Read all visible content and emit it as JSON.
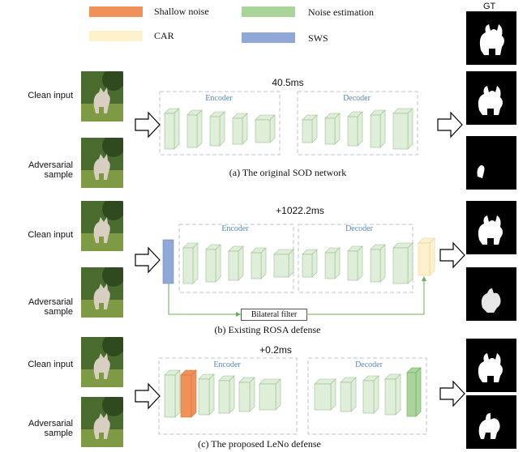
{
  "legend": {
    "shallow_noise": {
      "label": "Shallow noise",
      "color": "#f0915a"
    },
    "noise_estimation": {
      "label": "Noise estimation",
      "color": "#a9d59a"
    },
    "car": {
      "label": "CAR",
      "color": "#fdf1cc"
    },
    "sws": {
      "label": "SWS",
      "color": "#90a8d8"
    }
  },
  "gt_label": "GT",
  "panels": [
    {
      "clean_label": "Clean input",
      "adv_label": "Adversarial sample",
      "timing": "40.5ms",
      "encoder_label": "Encoder",
      "decoder_label": "Decoder",
      "caption": "(a) The original SOD network"
    },
    {
      "clean_label": "Clean input",
      "adv_label": "Adversarial sample",
      "timing": "+1022.2ms",
      "encoder_label": "Encoder",
      "decoder_label": "Decoder",
      "filter_label": "Bilateral filter",
      "caption": "(b) Existing ROSA defense"
    },
    {
      "clean_label": "Clean input",
      "adv_label": "Adversarial sample",
      "timing": "+0.2ms",
      "encoder_label": "Encoder",
      "decoder_label": "Decoder",
      "caption": "(c) The proposed LeNo defense"
    }
  ],
  "colors": {
    "block_green": "#dfeed8",
    "block_green_edge": "#9cbf90",
    "dashed_box": "#b9c6cf",
    "arrow_green": "#6ab04c"
  }
}
